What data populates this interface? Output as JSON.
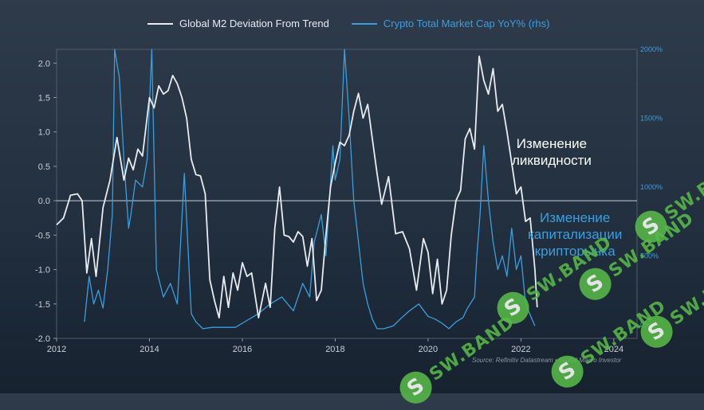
{
  "chart_data": {
    "type": "line",
    "title": "",
    "xlabel": "",
    "ylabel": "",
    "xlim": [
      2012,
      2024.5
    ],
    "ylim": [
      -2.0,
      2.2
    ],
    "y2lim": [
      -100,
      2000
    ],
    "x_ticks": [
      "2012",
      "2014",
      "2016",
      "2018",
      "2020",
      "2022",
      "2024"
    ],
    "y_ticks": [
      "2.0",
      "1.5",
      "1.0",
      "0.5",
      "0.0",
      "-0.5",
      "-1.0",
      "-1.5",
      "-2.0"
    ],
    "y2_ticks": [
      "2000%",
      "1500%",
      "1000%",
      "500%",
      "0%"
    ],
    "grid": false,
    "zero_line": true,
    "legend_position": "top",
    "series": [
      {
        "name": "Global M2 Deviation From Trend",
        "axis": "left",
        "color": "#e8ecf0",
        "x": [
          2012.0,
          2012.15,
          2012.3,
          2012.45,
          2012.55,
          2012.65,
          2012.75,
          2012.85,
          2013.0,
          2013.15,
          2013.3,
          2013.45,
          2013.55,
          2013.65,
          2013.75,
          2013.85,
          2014.0,
          2014.1,
          2014.2,
          2014.3,
          2014.4,
          2014.5,
          2014.6,
          2014.7,
          2014.8,
          2014.9,
          2015.0,
          2015.1,
          2015.2,
          2015.3,
          2015.4,
          2015.5,
          2015.6,
          2015.7,
          2015.8,
          2015.9,
          2016.0,
          2016.1,
          2016.2,
          2016.35,
          2016.5,
          2016.6,
          2016.7,
          2016.8,
          2016.9,
          2017.0,
          2017.1,
          2017.2,
          2017.3,
          2017.4,
          2017.5,
          2017.6,
          2017.7,
          2017.8,
          2017.9,
          2018.0,
          2018.1,
          2018.2,
          2018.3,
          2018.4,
          2018.5,
          2018.6,
          2018.7,
          2018.8,
          2018.9,
          2019.0,
          2019.15,
          2019.3,
          2019.45,
          2019.6,
          2019.75,
          2019.9,
          2020.0,
          2020.1,
          2020.2,
          2020.3,
          2020.4,
          2020.5,
          2020.6,
          2020.7,
          2020.8,
          2020.9,
          2021.0,
          2021.1,
          2021.2,
          2021.3,
          2021.4,
          2021.5,
          2021.6,
          2021.7,
          2021.8,
          2021.9,
          2022.0,
          2022.1,
          2022.2,
          2022.3,
          2022.35
        ],
        "y": [
          -0.35,
          -0.25,
          0.08,
          0.1,
          0.0,
          -1.05,
          -0.55,
          -1.1,
          -0.1,
          0.3,
          0.92,
          0.3,
          0.62,
          0.45,
          0.75,
          0.65,
          1.5,
          1.35,
          1.67,
          1.55,
          1.6,
          1.82,
          1.7,
          1.5,
          1.2,
          0.6,
          0.38,
          0.36,
          0.1,
          -1.15,
          -1.45,
          -1.7,
          -1.1,
          -1.55,
          -1.05,
          -1.3,
          -0.9,
          -1.1,
          -1.05,
          -1.7,
          -1.2,
          -1.55,
          -0.4,
          0.2,
          -0.5,
          -0.52,
          -0.6,
          -0.45,
          -0.52,
          -0.95,
          -0.55,
          -1.45,
          -1.3,
          -0.5,
          0.2,
          0.55,
          0.85,
          0.8,
          0.95,
          1.3,
          1.56,
          1.2,
          1.4,
          0.9,
          0.4,
          -0.05,
          0.35,
          -0.48,
          -0.45,
          -0.7,
          -1.3,
          -0.55,
          -0.75,
          -1.35,
          -0.85,
          -1.5,
          -1.3,
          -0.5,
          0.0,
          0.15,
          0.9,
          1.05,
          0.75,
          2.1,
          1.75,
          1.55,
          1.92,
          1.3,
          1.4,
          1.0,
          0.55,
          0.1,
          0.2,
          -0.3,
          -0.25,
          -1.0,
          -1.55
        ]
      },
      {
        "name": "Crypto Total Market Cap YoY% (rhs)",
        "axis": "right",
        "color": "#3a9fe0",
        "x": [
          2012.6,
          2012.7,
          2012.8,
          2012.9,
          2013.0,
          2013.1,
          2013.2,
          2013.25,
          2013.35,
          2013.45,
          2013.55,
          2013.6,
          2013.7,
          2013.85,
          2013.95,
          2014.05,
          2014.15,
          2014.3,
          2014.45,
          2014.6,
          2014.75,
          2014.9,
          2015.0,
          2015.15,
          2015.35,
          2015.6,
          2015.85,
          2016.1,
          2016.35,
          2016.6,
          2016.85,
          2017.1,
          2017.3,
          2017.45,
          2017.55,
          2017.7,
          2017.8,
          2017.95,
          2018.0,
          2018.1,
          2018.2,
          2018.3,
          2018.4,
          2018.5,
          2018.6,
          2018.7,
          2018.8,
          2018.9,
          2019.05,
          2019.25,
          2019.4,
          2019.6,
          2019.8,
          2020.0,
          2020.15,
          2020.3,
          2020.45,
          2020.6,
          2020.75,
          2020.85,
          2021.0,
          2021.05,
          2021.12,
          2021.2,
          2021.3,
          2021.4,
          2021.5,
          2021.6,
          2021.7,
          2021.8,
          2021.9,
          2022.0,
          2022.1,
          2022.2,
          2022.3
        ],
        "y": [
          20,
          350,
          150,
          250,
          120,
          400,
          800,
          2000,
          1800,
          1200,
          700,
          800,
          1050,
          1000,
          1200,
          2000,
          400,
          200,
          300,
          150,
          1100,
          80,
          20,
          -30,
          -20,
          -20,
          -20,
          30,
          80,
          150,
          200,
          100,
          300,
          200,
          600,
          800,
          500,
          1300,
          1050,
          1200,
          2000,
          1500,
          900,
          600,
          300,
          150,
          40,
          -30,
          -30,
          -10,
          40,
          100,
          150,
          60,
          40,
          10,
          -30,
          20,
          50,
          120,
          200,
          500,
          800,
          1300,
          900,
          600,
          400,
          500,
          350,
          700,
          400,
          500,
          150,
          70,
          -10
        ]
      }
    ],
    "annotations": [
      {
        "text": "Изменение\nликвидности",
        "color": "#ffffff"
      },
      {
        "text": "Изменение\nкапитализации\nкрипторынка",
        "color": "#3a9fe0"
      }
    ],
    "source": "Source: Refinitiv Datastream • Global Macro Investor"
  },
  "watermark": {
    "text": "SW.BAND",
    "glyph": "S",
    "color": "#57b947"
  }
}
